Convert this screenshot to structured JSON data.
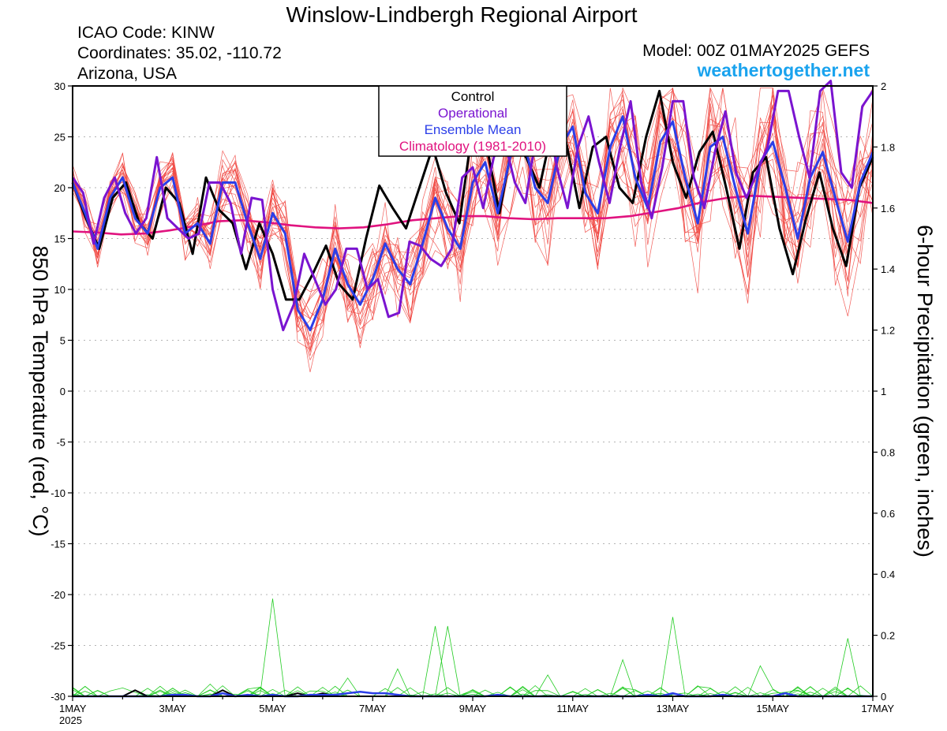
{
  "header": {
    "title": "Winslow-Lindbergh Regional Airport",
    "icao": "ICAO Code: KINW",
    "coords": "Coordinates: 35.02, -110.72",
    "state": "Arizona, USA",
    "model": "Model: 00Z 01MAY2025 GEFS",
    "site": "weathertogether.net",
    "site_color": "#1aa3ee"
  },
  "legend": {
    "control": "Control",
    "operational": "Operational",
    "ensemble_mean": "Ensemble Mean",
    "climatology": "Climatology (1981-2010)"
  },
  "axes": {
    "left_label": "850 hPa Temperature (red, °C)",
    "right_label": "6-hour Precipitation (green, inches)",
    "year_label": "2025"
  },
  "colors": {
    "control": "#000000",
    "operational": "#7a14d0",
    "ensemble_mean": "#2b3ee8",
    "climatology": "#e0137f",
    "members": "#f0423c",
    "precip": "#22cc22"
  },
  "chart_data": {
    "type": "line",
    "x_unit": "days since 00Z 1 May 2025",
    "x_range": [
      0,
      16
    ],
    "x_tick_labels": [
      {
        "x": 0,
        "label": "1MAY"
      },
      {
        "x": 2,
        "label": "3MAY"
      },
      {
        "x": 4,
        "label": "5MAY"
      },
      {
        "x": 6,
        "label": "7MAY"
      },
      {
        "x": 8,
        "label": "9MAY"
      },
      {
        "x": 10,
        "label": "11MAY"
      },
      {
        "x": 12,
        "label": "13MAY"
      },
      {
        "x": 14,
        "label": "15MAY"
      },
      {
        "x": 16,
        "label": "17MAY"
      }
    ],
    "y_left": {
      "label": "850 hPa Temperature (red, °C)",
      "range": [
        -30,
        30
      ],
      "ticks": [
        30,
        25,
        20,
        15,
        10,
        5,
        0,
        -5,
        -10,
        -15,
        -20,
        -25,
        -30
      ]
    },
    "y_right": {
      "label": "6-hour Precipitation (green, inches)",
      "range": [
        0,
        2
      ],
      "ticks": [
        "2",
        "1.8",
        "1.6",
        "1.4",
        "1.2",
        "1",
        "0.8",
        "0.6",
        "0.4",
        "0.2",
        "0"
      ]
    },
    "grid": true,
    "series": [
      {
        "name": "Control",
        "axis": "left",
        "values": [
          20.5,
          17,
          14,
          19,
          20.5,
          16.5,
          15,
          20,
          18.5,
          13.5,
          21,
          17.8,
          16.5,
          12,
          16.5,
          13.5,
          9,
          9,
          11.5,
          14.3,
          10.5,
          9,
          15,
          20.2,
          18,
          16,
          20,
          24,
          19.5,
          16.5,
          26,
          24.5,
          17.5,
          24.5,
          23,
          20,
          26,
          24.5,
          18,
          24,
          25,
          20,
          18.5,
          25,
          29.5,
          22.5,
          19,
          23.5,
          25.5,
          20,
          14,
          21.5,
          23,
          16,
          11.5,
          17,
          21.5,
          16,
          12.3,
          20,
          23
        ]
      },
      {
        "name": "Operational",
        "axis": "left",
        "values": [
          21,
          19.5,
          14.5,
          19,
          21,
          17.5,
          15.5,
          17,
          23,
          17,
          16,
          15,
          15.5,
          20.5,
          20.5,
          18.5,
          13.5,
          19,
          18.8,
          10,
          6,
          8.5,
          13.5,
          11,
          8.5,
          10,
          14,
          14,
          10,
          11,
          7.3,
          7.7,
          14.7,
          14.3,
          13,
          12.3,
          14,
          21,
          22,
          18,
          23,
          24.7,
          20.5,
          18.5,
          25,
          27.5,
          22,
          18,
          24,
          27,
          22.5,
          18.5,
          24,
          28.5,
          20.5,
          17,
          22,
          28.5,
          28.5,
          21,
          18,
          23.5,
          27.5,
          21.5,
          19,
          21.5,
          24,
          29.5,
          29.5,
          25,
          21,
          29.5,
          30.5,
          21.5,
          20,
          28,
          29.5
        ]
      },
      {
        "name": "Ensemble Mean",
        "axis": "left",
        "values": [
          20.5,
          17.5,
          14,
          19,
          21,
          17,
          15.5,
          20,
          21,
          15.5,
          16.5,
          14.5,
          20.5,
          20.5,
          16.5,
          13,
          17.5,
          15.5,
          8,
          6,
          9,
          14,
          10.5,
          8.5,
          11,
          14.5,
          12,
          10.5,
          14.5,
          19,
          16,
          14,
          20.5,
          22.5,
          17.5,
          23,
          25,
          20,
          18.5,
          24,
          26,
          19.5,
          17.5,
          24,
          27,
          21,
          18,
          24.5,
          26.5,
          21,
          16.5,
          24,
          25,
          20,
          15.5,
          22.5,
          24.5,
          20,
          15,
          21,
          23.5,
          19,
          14.7,
          20.5,
          23.5
        ]
      },
      {
        "name": "Climatology (1981-2010)",
        "axis": "left",
        "values": [
          15.7,
          15.6,
          15.4,
          15.5,
          15.8,
          16.2,
          16.7,
          16.8,
          16.6,
          16.3,
          16.1,
          16.0,
          16.1,
          16.4,
          16.8,
          17.0,
          17.2,
          17.2,
          17.0,
          16.9,
          17.0,
          17.0,
          17.0,
          17.2,
          17.6,
          18.0,
          18.6,
          19.0,
          19.2,
          19.1,
          19.0,
          18.9,
          18.8,
          18.5
        ]
      },
      {
        "name": "Control precipitation",
        "axis": "right",
        "values": [
          0,
          0,
          0,
          0,
          0,
          0.02,
          0,
          0,
          0,
          0,
          0,
          0,
          0.02,
          0,
          0,
          0,
          0,
          0,
          0.01,
          0,
          0.01,
          0,
          0,
          0,
          0,
          0,
          0,
          0,
          0,
          0,
          0,
          0,
          0,
          0,
          0,
          0,
          0,
          0,
          0,
          0,
          0,
          0,
          0,
          0,
          0,
          0,
          0,
          0,
          0,
          0,
          0,
          0,
          0,
          0,
          0,
          0,
          0,
          0,
          0,
          0,
          0,
          0,
          0,
          0,
          0
        ]
      },
      {
        "name": "Ensemble mean precipitation",
        "axis": "right",
        "values": [
          0,
          0,
          0,
          0,
          0,
          0,
          0,
          0,
          0.005,
          0.005,
          0,
          0,
          0.01,
          0,
          0.005,
          0,
          0.005,
          0,
          0,
          0.005,
          0.005,
          0.005,
          0.01,
          0.015,
          0.01,
          0.01,
          0.005,
          0,
          0,
          0,
          0,
          0,
          0,
          0,
          0.005,
          0,
          0,
          0,
          0,
          0,
          0,
          0,
          0,
          0,
          0,
          0,
          0.005,
          0,
          0.01,
          0,
          0,
          0,
          0.005,
          0,
          0,
          0,
          0,
          0.01,
          0,
          0,
          0,
          0,
          0,
          0,
          0
        ]
      }
    ],
    "ensemble_member_count": 20
  }
}
